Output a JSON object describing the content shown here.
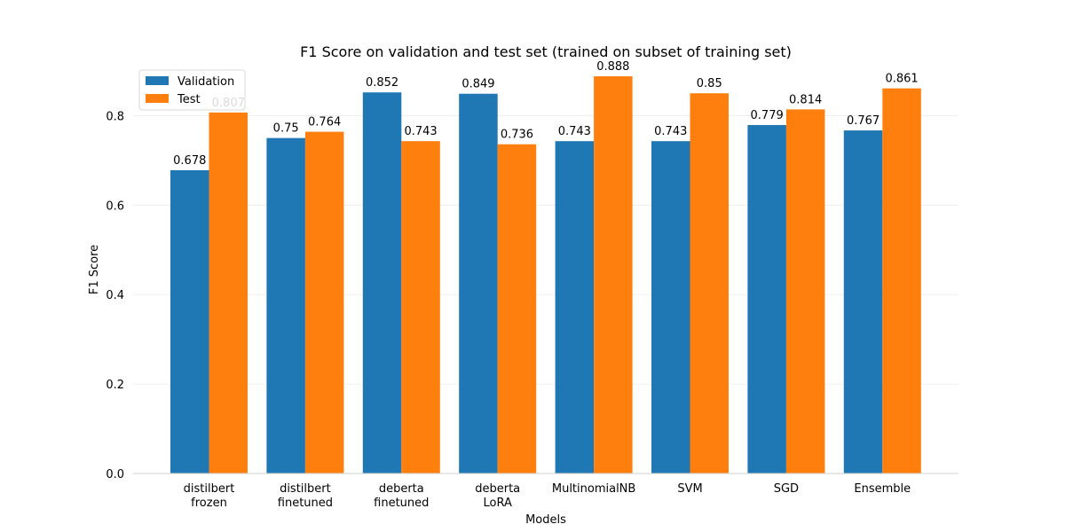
{
  "chart_data": {
    "type": "bar",
    "title": "F1 Score on validation and test set (trained on subset of training set)",
    "xlabel": "Models",
    "ylabel": "F1 Score",
    "ylim": [
      0,
      0.9
    ],
    "yticks": [
      "0.0",
      "0.2",
      "0.4",
      "0.6",
      "0.8"
    ],
    "categories": [
      [
        "distilbert",
        "frozen"
      ],
      [
        "distilbert",
        "finetuned"
      ],
      [
        "deberta",
        "finetuned"
      ],
      [
        "deberta",
        "LoRA"
      ],
      [
        "MultinomialNB"
      ],
      [
        "SVM"
      ],
      [
        "SGD"
      ],
      [
        "Ensemble"
      ]
    ],
    "series": [
      {
        "name": "Validation",
        "color": "#1f77b4",
        "values": [
          0.678,
          0.75,
          0.852,
          0.849,
          0.743,
          0.743,
          0.779,
          0.767
        ],
        "labels": [
          "0.678",
          "0.75",
          "0.852",
          "0.849",
          "0.743",
          "0.743",
          "0.779",
          "0.767"
        ]
      },
      {
        "name": "Test",
        "color": "#ff7f0e",
        "values": [
          0.807,
          0.764,
          0.743,
          0.736,
          0.888,
          0.85,
          0.814,
          0.861
        ],
        "labels": [
          "0.807",
          "0.764",
          "0.743",
          "0.736",
          "0.888",
          "0.85",
          "0.814",
          "0.861"
        ]
      }
    ],
    "grid": "y",
    "legend": "top-left"
  }
}
